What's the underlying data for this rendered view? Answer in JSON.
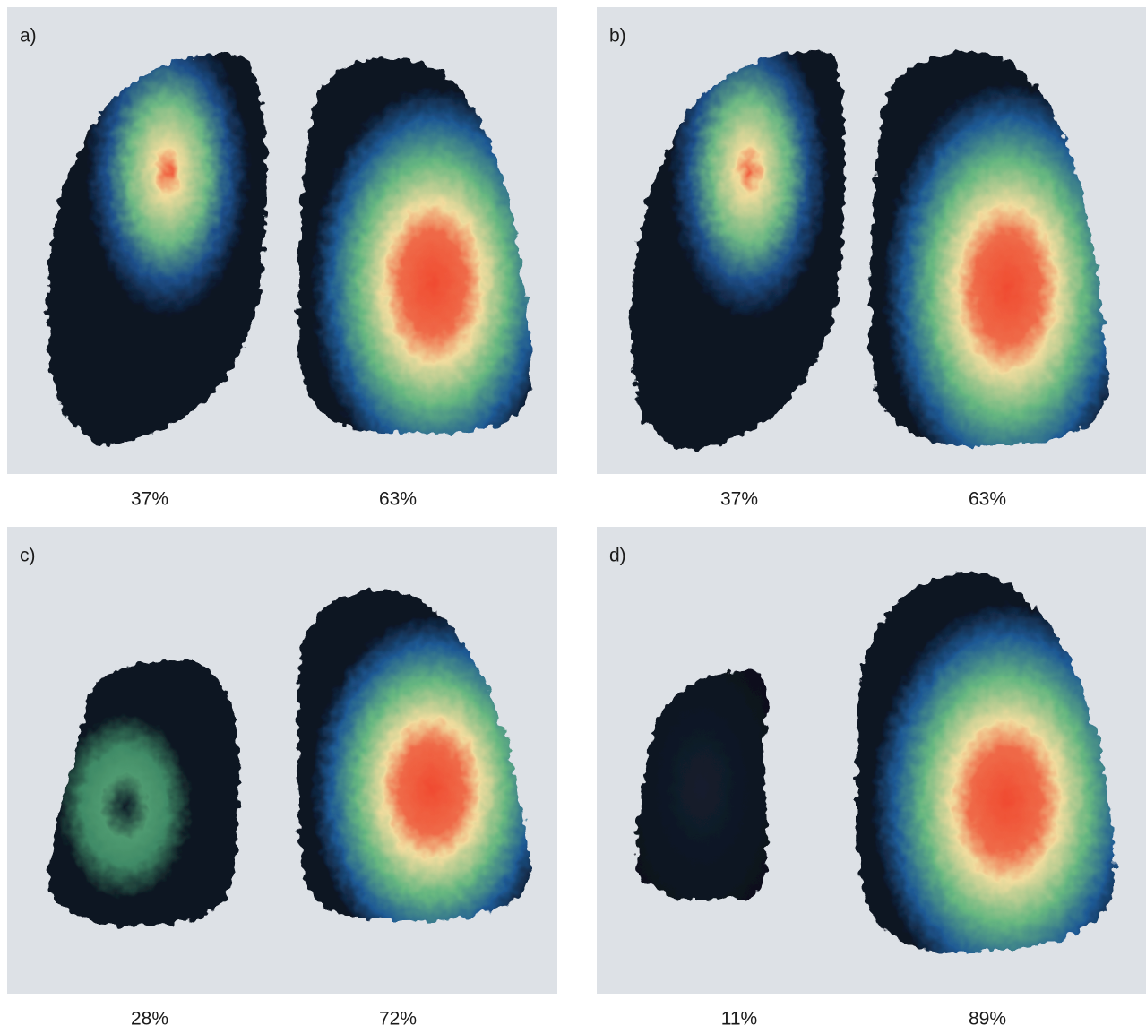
{
  "panels": [
    {
      "label": "a)",
      "left": "37%",
      "right": "63%"
    },
    {
      "label": "b)",
      "left": "37%",
      "right": "63%"
    },
    {
      "label": "c)",
      "left": "28%",
      "right": "72%"
    },
    {
      "label": "d)",
      "left": "11%",
      "right": "89%"
    }
  ]
}
